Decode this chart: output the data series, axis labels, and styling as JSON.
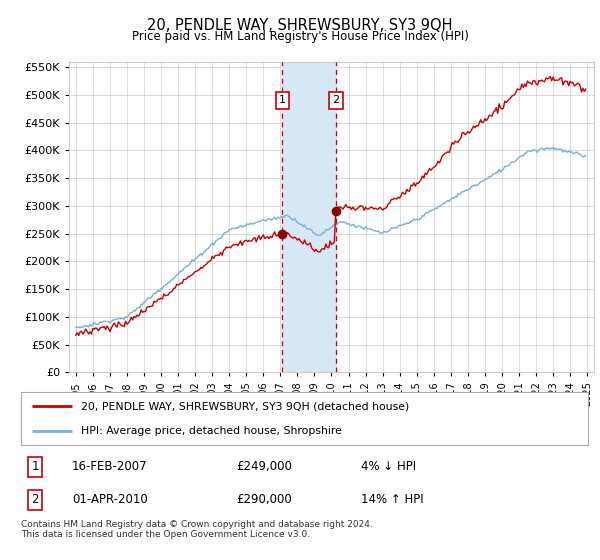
{
  "title": "20, PENDLE WAY, SHREWSBURY, SY3 9QH",
  "subtitle": "Price paid vs. HM Land Registry's House Price Index (HPI)",
  "legend_line1": "20, PENDLE WAY, SHREWSBURY, SY3 9QH (detached house)",
  "legend_line2": "HPI: Average price, detached house, Shropshire",
  "footer": "Contains HM Land Registry data © Crown copyright and database right 2024.\nThis data is licensed under the Open Government Licence v3.0.",
  "transaction1_date": "16-FEB-2007",
  "transaction1_price": "£249,000",
  "transaction1_hpi": "4% ↓ HPI",
  "transaction2_date": "01-APR-2010",
  "transaction2_price": "£290,000",
  "transaction2_hpi": "14% ↑ HPI",
  "sale1_x": 2007.12,
  "sale1_y": 249000,
  "sale2_x": 2010.25,
  "sale2_y": 290000,
  "hpi_color": "#7bafd4",
  "price_color": "#cc0000",
  "highlight_color": "#d6e8f5",
  "vline_color": "#cc0000",
  "grid_color": "#cccccc",
  "background_color": "#ffffff",
  "ylim": [
    0,
    560000
  ],
  "xlim": [
    1994.6,
    2025.4
  ],
  "yticks": [
    0,
    50000,
    100000,
    150000,
    200000,
    250000,
    300000,
    350000,
    400000,
    450000,
    500000,
    550000
  ],
  "xticks": [
    1995,
    1996,
    1997,
    1998,
    1999,
    2000,
    2001,
    2002,
    2003,
    2004,
    2005,
    2006,
    2007,
    2008,
    2009,
    2010,
    2011,
    2012,
    2013,
    2014,
    2015,
    2016,
    2017,
    2018,
    2019,
    2020,
    2021,
    2022,
    2023,
    2024,
    2025
  ]
}
